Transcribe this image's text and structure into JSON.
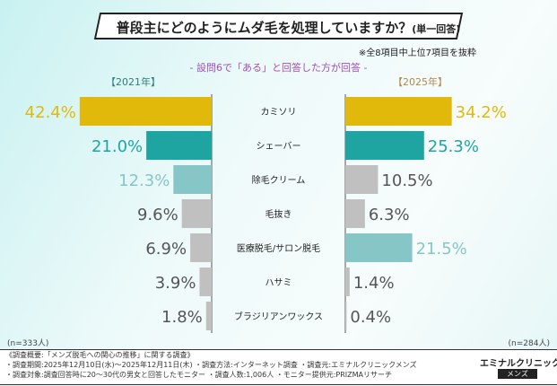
{
  "chart_data": {
    "type": "bar",
    "title": "普段主にどのようにムダ毛を処理していますか？",
    "title_suffix": "(単一回答)",
    "note": "※全8項目中上位7項目を抜粋",
    "subtitle": "- 設問6で「ある」と回答した方が回答 -",
    "categories": [
      "カミソリ",
      "シェーバー",
      "除毛クリーム",
      "毛抜き",
      "医療脱毛/サロン脱毛",
      "ハサミ",
      "ブラジリアンワックス"
    ],
    "series": [
      {
        "name": "【2021年】",
        "values": [
          42.4,
          21.0,
          12.3,
          9.6,
          6.9,
          3.9,
          1.8
        ],
        "labels": [
          "42.4%",
          "21.0%",
          "12.3%",
          "9.6%",
          "6.9%",
          "3.9%",
          "1.8%"
        ],
        "colors": [
          "#e1b90a",
          "#1ea5a2",
          "#86c6c6",
          "#c0c0c0",
          "#c0c0c0",
          "#c0c0c0",
          "#c0c0c0"
        ],
        "n": "(n=333人)"
      },
      {
        "name": "【2025年】",
        "values": [
          34.2,
          25.3,
          10.5,
          6.3,
          21.5,
          1.4,
          0.4
        ],
        "labels": [
          "34.2%",
          "25.3%",
          "10.5%",
          "6.3%",
          "21.5%",
          "1.4%",
          "0.4%"
        ],
        "colors": [
          "#e1b90a",
          "#1ea5a2",
          "#c0c0c0",
          "#c0c0c0",
          "#86c6c6",
          "#c0c0c0",
          "#c0c0c0"
        ],
        "n": "(n=284人)"
      }
    ]
  },
  "footer": {
    "lines": [
      "《調査概要:「メンズ脱毛への関心の推移」に関する調査》",
      "・調査期間:2025年12月10日(水)〜2025年12月11日(木) ・調査方法:インターネット調査 ・調査元:エミナルクリニックメンズ",
      "・調査対象:調査回答時に20〜30代の男女と回答したモニター ・調査人数:1,006人 ・モニター提供元:PRIZMAリサーチ"
    ],
    "logo": "エミナルクリニック",
    "logo_sub": "メンズ"
  }
}
